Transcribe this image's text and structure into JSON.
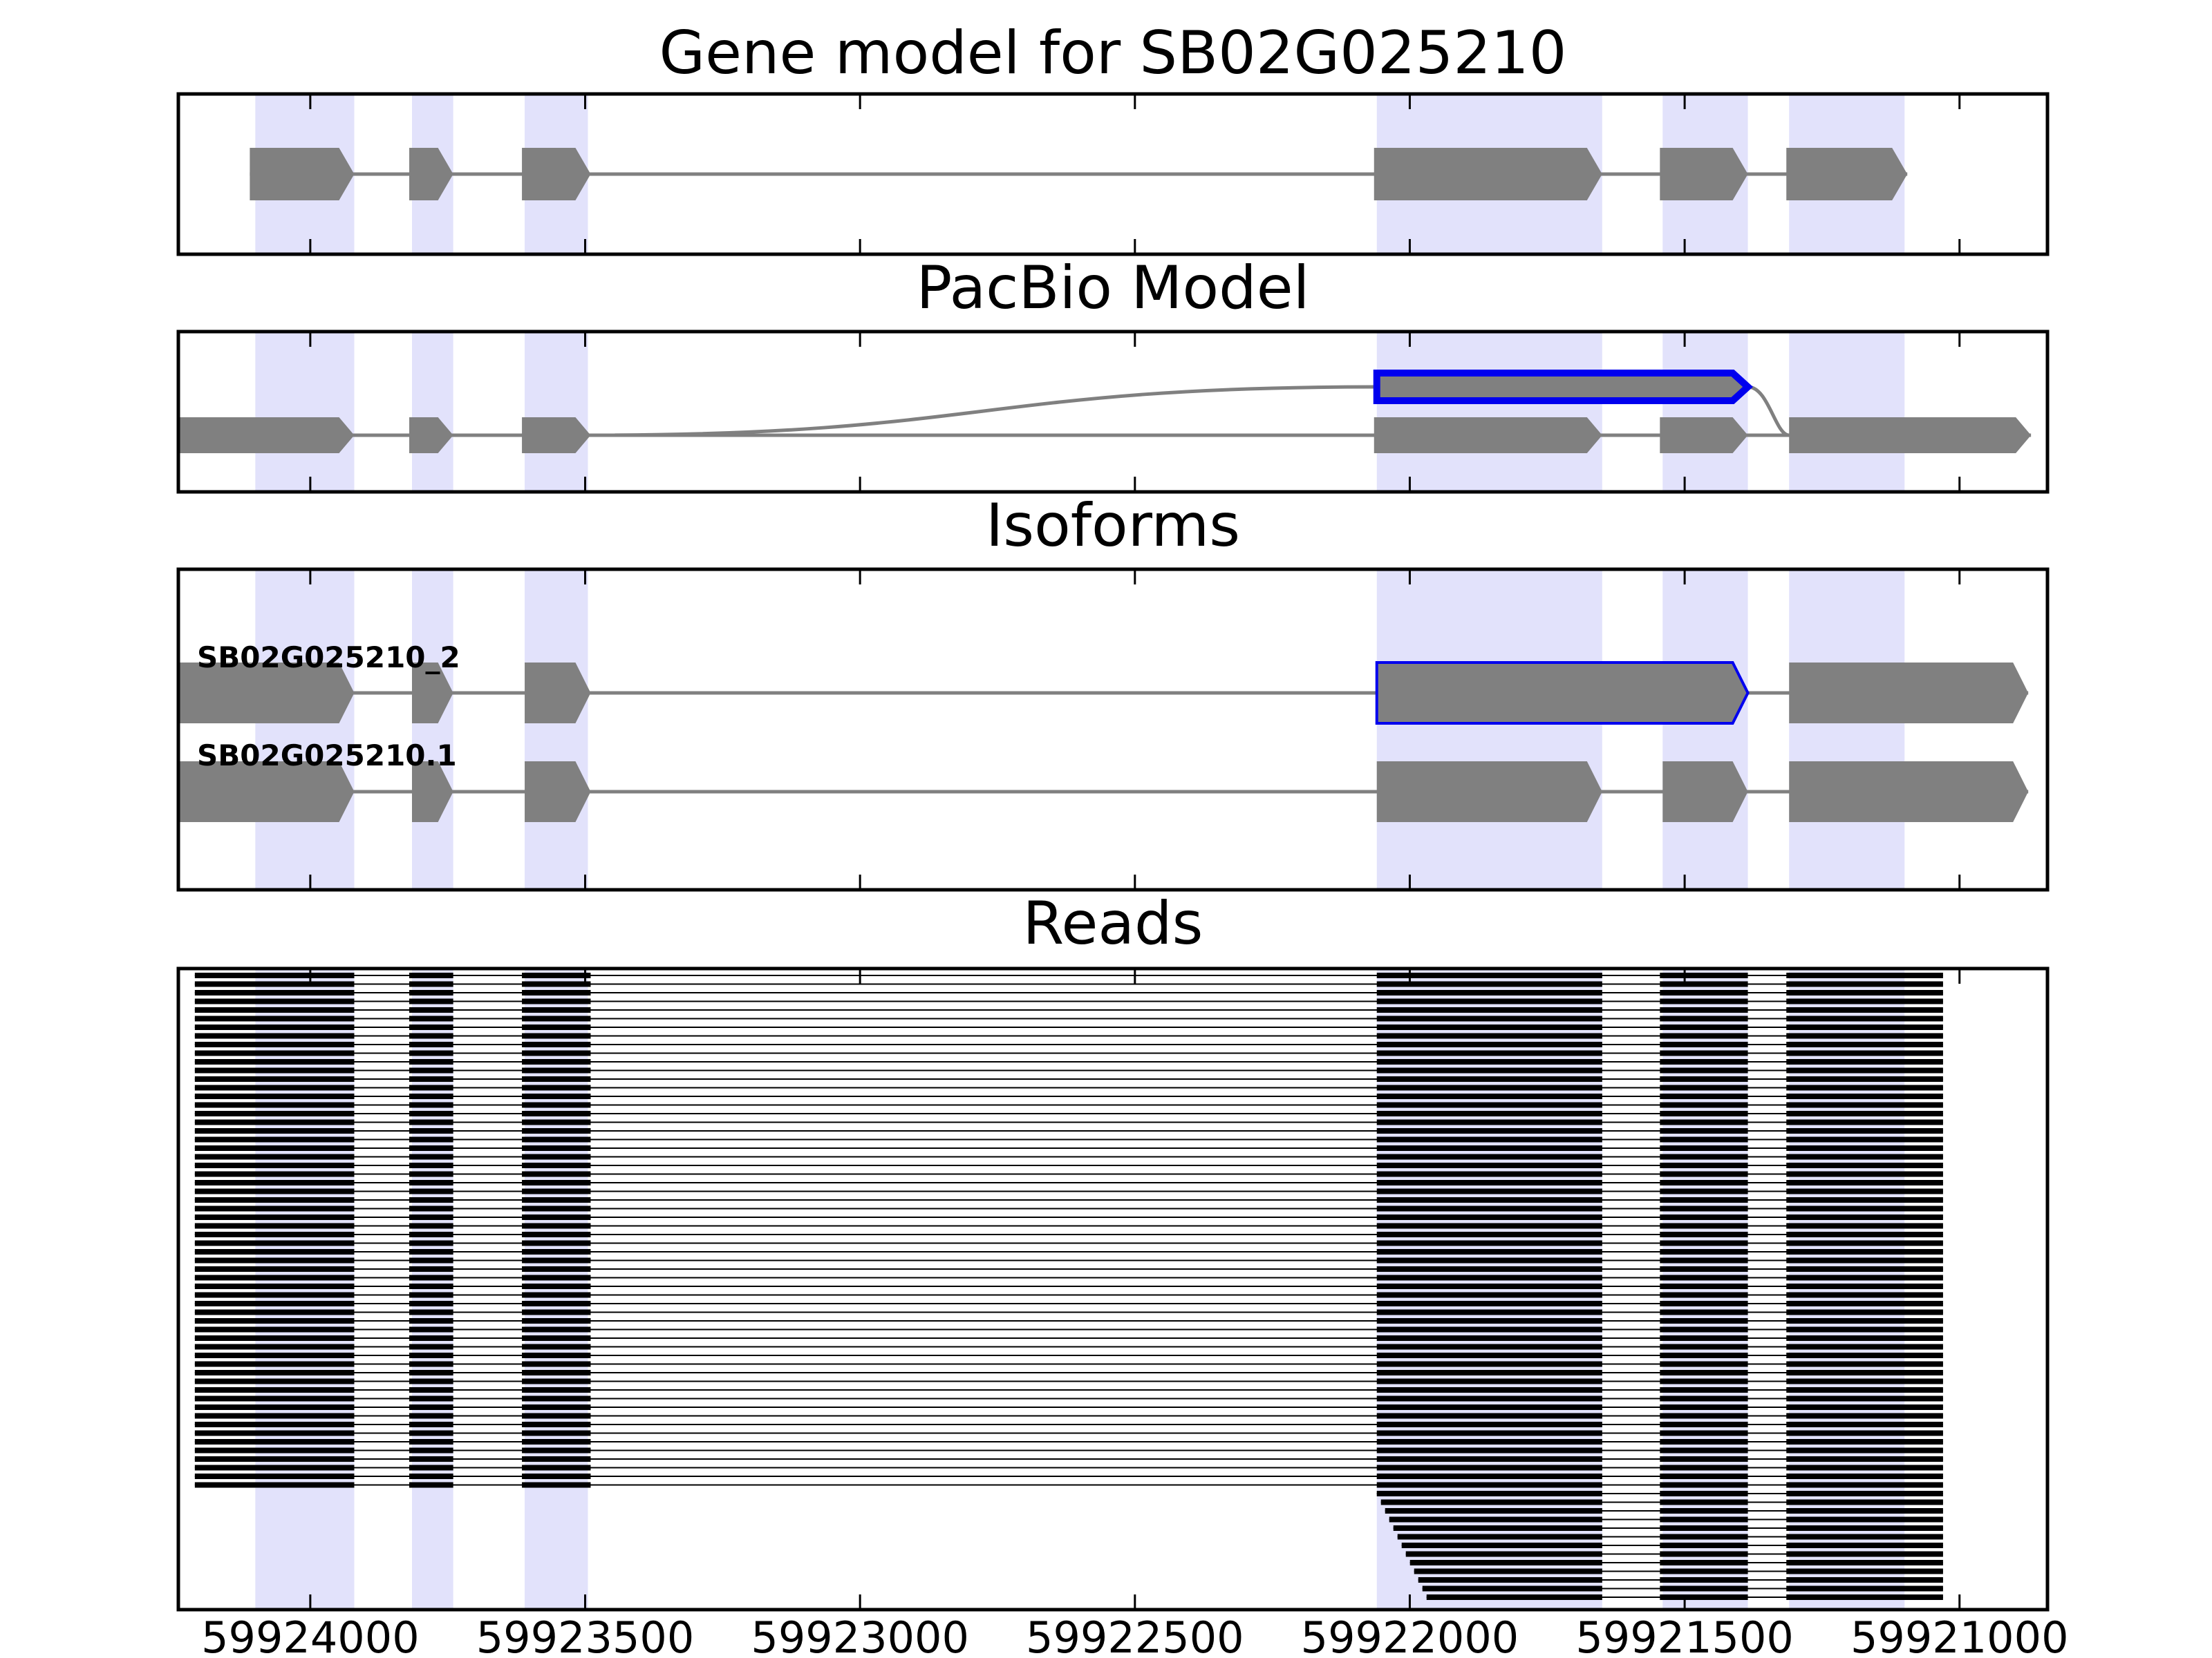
{
  "chart_data": {
    "type": "gene-track",
    "x_range": [
      59924240,
      59920840
    ],
    "x_ticks": [
      59924000,
      59923500,
      59923000,
      59922500,
      59922000,
      59921500,
      59921000
    ],
    "x_tick_labels": [
      "59924000",
      "59923500",
      "59923000",
      "59922500",
      "59922000",
      "59921500",
      "59921000"
    ],
    "highlight_regions": [
      [
        59924100,
        59923920
      ],
      [
        59923815,
        59923740
      ],
      [
        59923610,
        59923495
      ],
      [
        59922060,
        59921650
      ],
      [
        59921540,
        59921385
      ],
      [
        59921310,
        59921100
      ]
    ],
    "colors": {
      "exon": "#808080",
      "intron": "#808080",
      "highlight": "#e2e2fb",
      "novel_outline": "#0000ee",
      "read": "#000000",
      "frame": "#000000"
    },
    "panels": [
      {
        "id": "gene_model",
        "title": "Gene model for SB02G025210",
        "tracks": [
          {
            "exons": [
              [
                59924110,
                59923920
              ],
              [
                59923820,
                59923740
              ],
              [
                59923615,
                59923490
              ],
              [
                59922065,
                59921650
              ],
              [
                59921545,
                59921385
              ],
              [
                59921315,
                59921095
              ]
            ]
          }
        ]
      },
      {
        "id": "pacbio_model",
        "title": "PacBio Model",
        "tracks": [
          {
            "highlight": true,
            "lane": 0,
            "exons": [
              [
                59922060,
                59921385
              ]
            ],
            "connector_to": {
              "lane": 1,
              "x": 59921310
            },
            "connector_from": {
              "lane": 1,
              "x": 59923490
            }
          },
          {
            "lane": 1,
            "exons": [
              [
                59924240,
                59923920
              ],
              [
                59923820,
                59923740
              ],
              [
                59923615,
                59923490
              ],
              [
                59922065,
                59921650
              ],
              [
                59921545,
                59921385
              ],
              [
                59921310,
                59920870
              ]
            ]
          }
        ]
      },
      {
        "id": "isoforms",
        "title": "Isoforms",
        "tracks": [
          {
            "label": "SB02G025210_2",
            "exons": [
              [
                59924240,
                59923920
              ],
              [
                59923815,
                59923740
              ],
              [
                59923610,
                59923490
              ],
              [
                59922060,
                59921385
              ],
              [
                59921310,
                59920875
              ]
            ],
            "highlight_exon": 3
          },
          {
            "label": "SB02G025210.1",
            "exons": [
              [
                59924240,
                59923920
              ],
              [
                59923815,
                59923740
              ],
              [
                59923610,
                59923490
              ],
              [
                59922060,
                59921650
              ],
              [
                59921540,
                59921385
              ],
              [
                59921310,
                59920875
              ]
            ]
          }
        ]
      },
      {
        "id": "reads",
        "title": "Reads"
      }
    ],
    "reads": {
      "count": 60,
      "exon_blocks": [
        [
          59924210,
          59923920
        ],
        [
          59923820,
          59923740
        ],
        [
          59923615,
          59923490
        ],
        [
          59922060,
          59921650
        ],
        [
          59921545,
          59921385
        ],
        [
          59921315,
          59921030
        ]
      ]
    }
  }
}
